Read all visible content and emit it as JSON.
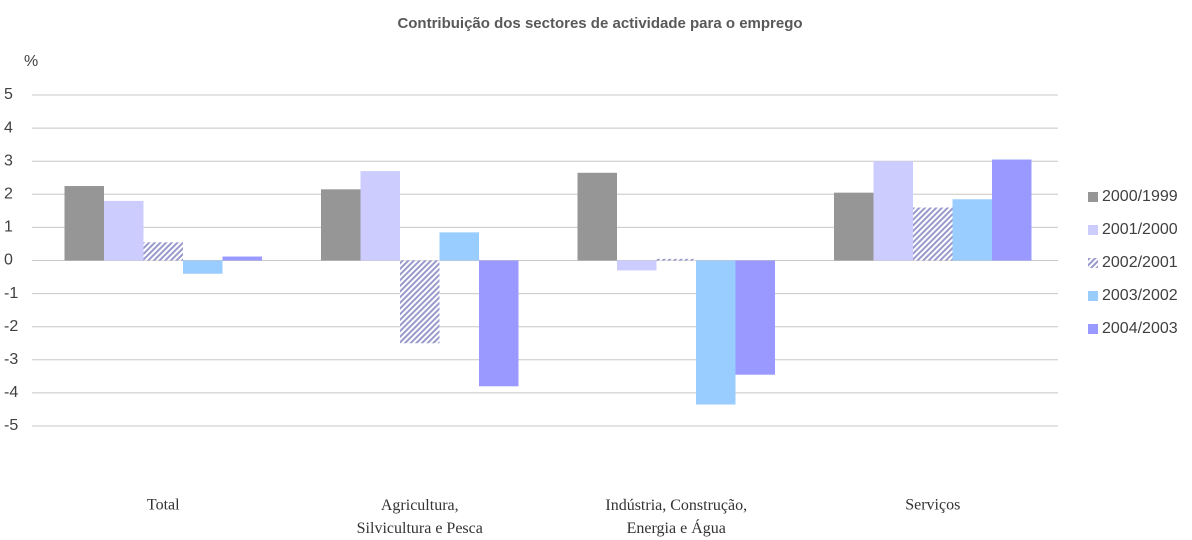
{
  "chart_data": {
    "type": "bar",
    "title": "Contribuição dos sectores de actividade para o emprego",
    "ylabel": "%",
    "categories": [
      "Total",
      "Agricultura,\nSilvicultura e Pesca",
      "Indústria, Construção,\nEnergia e Água",
      "Serviços"
    ],
    "series": [
      {
        "name": "2000/1999",
        "color": "#969696",
        "values": [
          2.25,
          2.15,
          2.65,
          2.05
        ]
      },
      {
        "name": "2001/2000",
        "color": "#ccccff",
        "values": [
          1.8,
          2.7,
          -0.3,
          3.0
        ]
      },
      {
        "name": "2002/2001",
        "color": "#9999cc",
        "pattern": "hatch",
        "values": [
          0.55,
          -2.5,
          0.05,
          1.6
        ]
      },
      {
        "name": "2003/2002",
        "color": "#99ccff",
        "values": [
          -0.4,
          0.85,
          -4.35,
          1.85
        ]
      },
      {
        "name": "2004/2003",
        "color": "#9999ff",
        "values": [
          0.12,
          -3.8,
          -3.45,
          3.05
        ]
      }
    ],
    "ylim": [
      -5,
      5
    ],
    "yticks": [
      -5,
      -4,
      -3,
      -2,
      -1,
      0,
      1,
      2,
      3,
      4,
      5
    ],
    "grid": true,
    "legend": "right"
  }
}
